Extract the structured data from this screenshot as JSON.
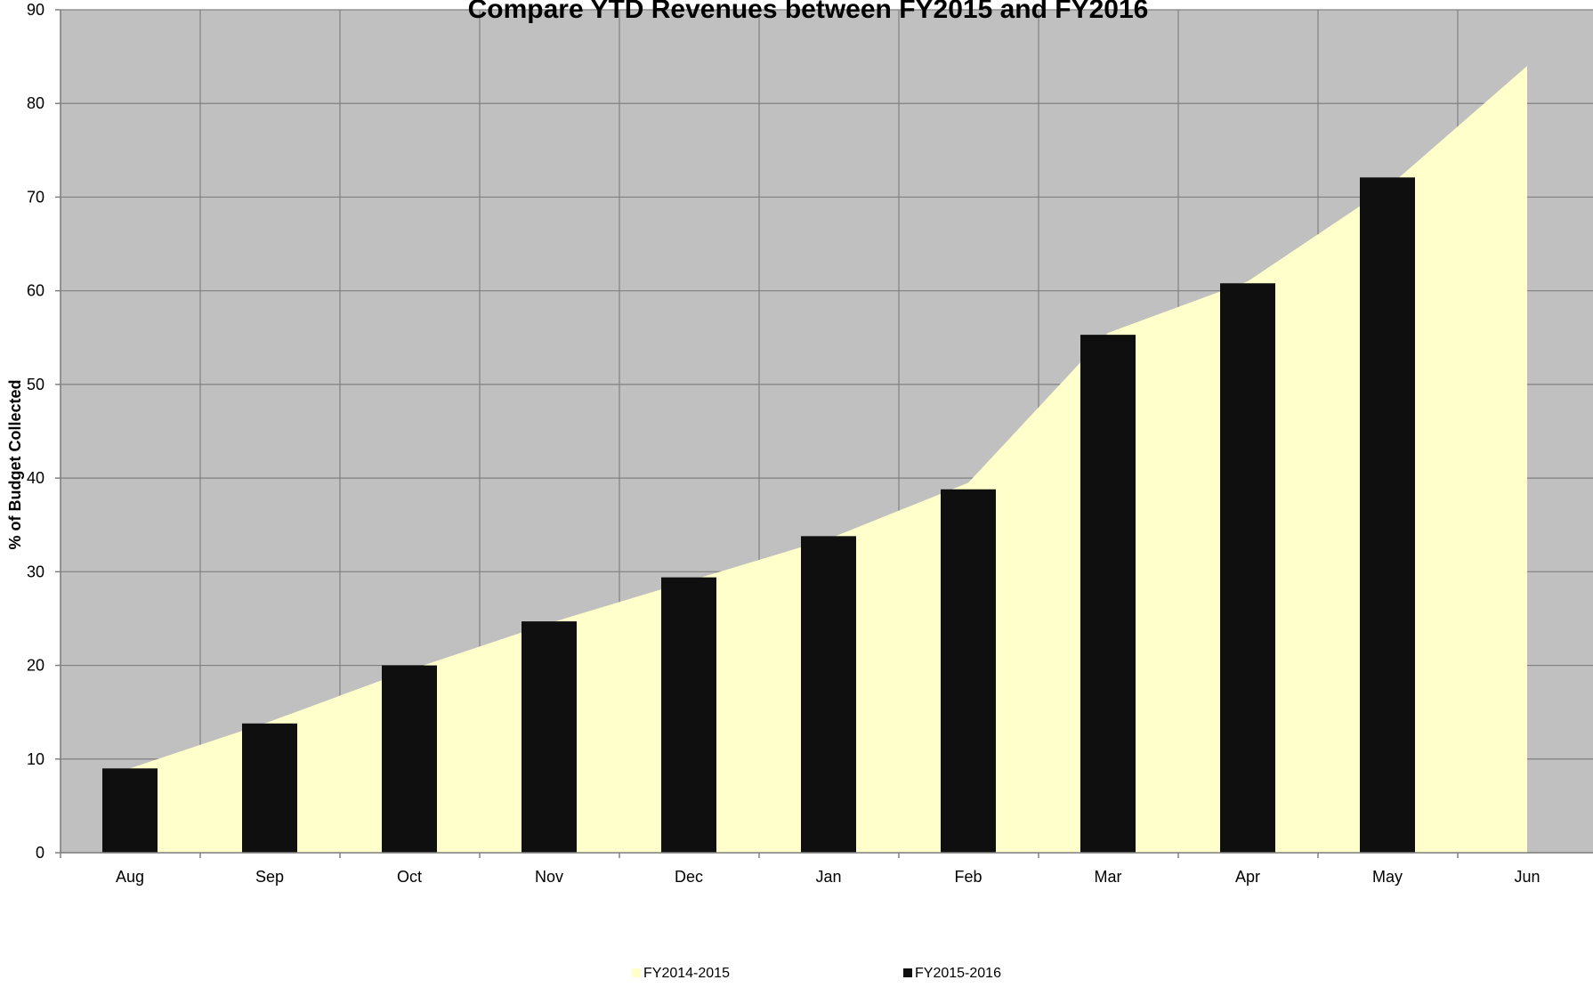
{
  "chart_data": {
    "type": "bar",
    "title": "Compare YTD Revenues between FY2015 and FY2016",
    "xlabel": "",
    "ylabel": "% of Budget Collected",
    "ylim": [
      0,
      90
    ],
    "yticks": [
      0,
      10,
      20,
      30,
      40,
      50,
      60,
      70,
      80,
      90
    ],
    "grid": true,
    "categories": [
      "Aug",
      "Sep",
      "Oct",
      "Nov",
      "Dec",
      "Jan",
      "Feb",
      "Mar",
      "Apr",
      "May",
      "Jun"
    ],
    "series": [
      {
        "name": "FY2014-2015",
        "type": "area",
        "color": "#ffffcc",
        "values": [
          9,
          14,
          19.5,
          24.5,
          29,
          33.5,
          39.5,
          55.5,
          61,
          71,
          84
        ]
      },
      {
        "name": "FY2015-2016",
        "type": "bar",
        "color": "#0f0f0f",
        "values": [
          9,
          13.8,
          20,
          24.7,
          29.4,
          33.8,
          38.8,
          55.3,
          60.8,
          72.1,
          null
        ]
      }
    ],
    "legend_position": "bottom",
    "plot_background": "#c0c0c0",
    "grid_color": "#808080"
  }
}
